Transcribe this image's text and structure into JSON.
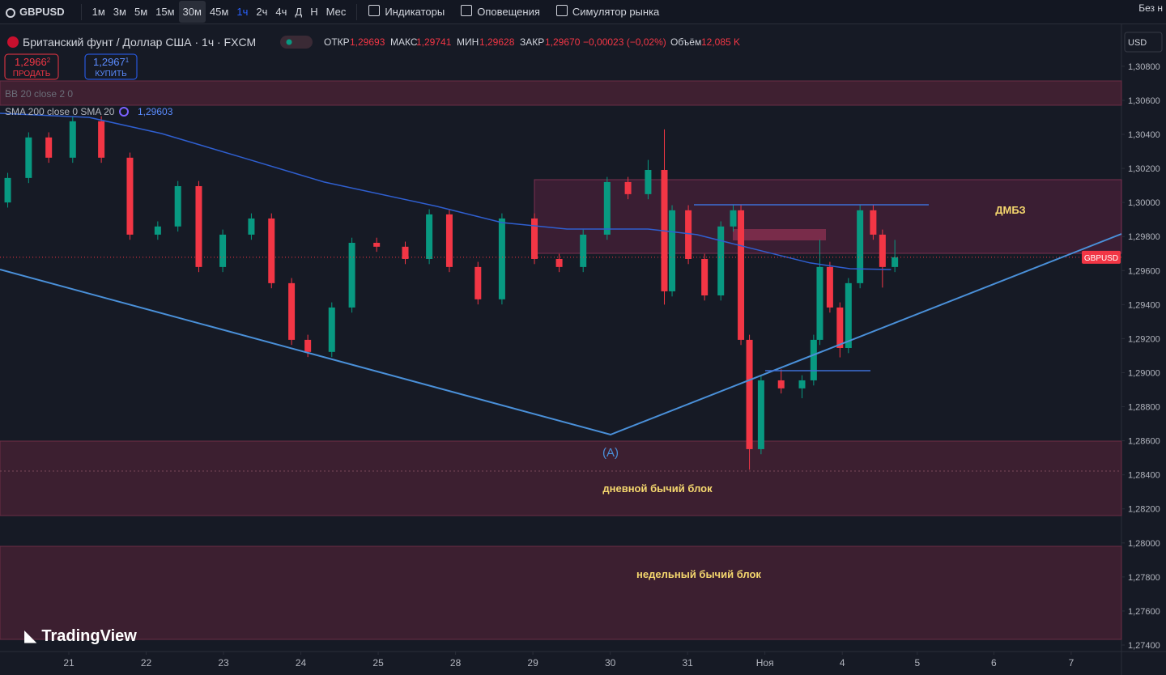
{
  "toolbar": {
    "symbol": "GBPUSD",
    "intervals": [
      "1м",
      "3м",
      "5м",
      "15м",
      "30м",
      "45м",
      "1ч",
      "2ч",
      "4ч",
      "Д",
      "Н",
      "Мес"
    ],
    "buttons": [
      "Индикаторы",
      "Оповещения",
      "Симулятор рынка"
    ],
    "right": "Без н"
  },
  "legend": {
    "instrument": "Британский фунт / Доллар США · 1ч · FXCM",
    "open_label": "ОТКР",
    "open": "1,29693",
    "high_label": "МАКС",
    "high": "1,29741",
    "low_label": "МИН",
    "low": "1,29628",
    "close_label": "ЗАКР",
    "close": "1,29670",
    "change": "−0,00023 (−0,02%)",
    "volume_label": "Объём",
    "volume": "12,085 K",
    "sell_price": "1,2966",
    "sell_sup": "2",
    "sell_label": "ПРОДАТЬ",
    "buy_price": "1,2967",
    "buy_sup": "1",
    "buy_label": "КУПИТЬ",
    "bb": "BB 20 close 2 0",
    "sma": "SMA 200 close 0 SMA 20",
    "sma_value": "1,29603",
    "currency": "USD"
  },
  "annotations": {
    "zone_top": "ДМБЗ",
    "point_a": "(A)",
    "daily_block": "дневной бычий блок",
    "weekly_block": "недельный бычий блок",
    "price_tag": "GBPUSD",
    "logo": "TradingView"
  },
  "chart_data": {
    "type": "candlestick",
    "x": [
      -0.79,
      -0.52,
      -0.26,
      0.05,
      0.42,
      0.79,
      1.15,
      1.41,
      1.68,
      1.99,
      2.36,
      2.62,
      2.88,
      3.09,
      3.4,
      3.66,
      3.98,
      4.35,
      4.66,
      4.92,
      5.29,
      5.6,
      6.02,
      6.34,
      6.65,
      6.96,
      7.23,
      7.49,
      7.7,
      7.8,
      8.01,
      8.22,
      8.43,
      8.59,
      8.69,
      8.8,
      8.95,
      9.21,
      9.48,
      9.63,
      9.71,
      9.84,
      9.97,
      10.08,
      10.23,
      10.4,
      10.52,
      10.68
    ],
    "open": [
      1.3,
      1.30144,
      1.30382,
      1.30263,
      1.30477,
      1.30263,
      1.29811,
      1.29859,
      1.30096,
      1.29621,
      1.29811,
      1.29906,
      1.29526,
      1.29193,
      1.29122,
      1.29383,
      1.29763,
      1.2974,
      1.29668,
      1.2993,
      1.29621,
      1.29431,
      1.29906,
      1.29668,
      1.29621,
      1.29811,
      1.3012,
      1.30049,
      1.30191,
      1.29478,
      1.29954,
      1.29668,
      1.29454,
      1.29859,
      1.29954,
      1.29193,
      1.28551,
      1.28955,
      1.28908,
      1.28955,
      1.29193,
      1.29621,
      1.29383,
      1.29145,
      1.29526,
      1.29954,
      1.29811,
      1.29621
    ],
    "high": [
      1.30174,
      1.30412,
      1.30412,
      1.30507,
      1.30507,
      1.30293,
      1.29889,
      1.30126,
      1.30126,
      1.29841,
      1.29936,
      1.29936,
      1.29556,
      1.29223,
      1.29413,
      1.29793,
      1.29793,
      1.2977,
      1.2996,
      1.2996,
      1.29651,
      1.29936,
      1.29936,
      1.29698,
      1.29841,
      1.3015,
      1.3015,
      1.3025,
      1.30429,
      1.29984,
      1.29984,
      1.29698,
      1.29889,
      1.29984,
      1.29984,
      1.29223,
      1.28985,
      1.2902,
      1.28985,
      1.29223,
      1.2978,
      1.29651,
      1.29413,
      1.29556,
      1.29984,
      1.29984,
      1.29841,
      1.2978
    ],
    "low": [
      1.2997,
      1.30114,
      1.30233,
      1.30233,
      1.30233,
      1.29781,
      1.29781,
      1.29829,
      1.29591,
      1.29591,
      1.29781,
      1.29496,
      1.29163,
      1.29092,
      1.29092,
      1.29353,
      1.2971,
      1.29638,
      1.29638,
      1.29591,
      1.29401,
      1.29401,
      1.29638,
      1.29591,
      1.29591,
      1.29781,
      1.30019,
      1.30019,
      1.294,
      1.29448,
      1.29638,
      1.29424,
      1.29424,
      1.29829,
      1.29163,
      1.2843,
      1.28521,
      1.28878,
      1.2885,
      1.28925,
      1.29163,
      1.29353,
      1.2909,
      1.29115,
      1.29496,
      1.29781,
      1.295,
      1.29591
    ],
    "close": [
      1.30144,
      1.30382,
      1.30263,
      1.30477,
      1.30263,
      1.29811,
      1.29859,
      1.30096,
      1.29621,
      1.29811,
      1.29906,
      1.29526,
      1.29193,
      1.29122,
      1.29383,
      1.29763,
      1.2974,
      1.29668,
      1.2993,
      1.29621,
      1.29431,
      1.29906,
      1.29668,
      1.29621,
      1.29811,
      1.3012,
      1.30049,
      1.30191,
      1.29478,
      1.29954,
      1.29668,
      1.29454,
      1.29859,
      1.29954,
      1.29193,
      1.28551,
      1.28955,
      1.28908,
      1.28955,
      1.29193,
      1.29621,
      1.29383,
      1.29145,
      1.29526,
      1.29954,
      1.29811,
      1.29621,
      1.29678
    ],
    "up_color": "#089981",
    "down_color": "#f23645",
    "series": [
      {
        "name": "SMA 200",
        "color": "#2f5fd0",
        "x": [
          -0.89,
          0.26,
          1.2,
          2.25,
          3.3,
          4.76,
          5.6,
          6.44,
          7.49,
          8.12,
          8.74,
          9.58,
          10.1,
          10.63
        ],
        "values": [
          1.30524,
          1.305,
          1.30405,
          1.30263,
          1.3012,
          1.29977,
          1.29882,
          1.29844,
          1.29844,
          1.29811,
          1.2974,
          1.29645,
          1.29611,
          1.29606
        ]
      }
    ],
    "xlim": [
      -0.89,
      13.61
    ],
    "xticks": [
      {
        "value": 0,
        "label": "21"
      },
      {
        "value": 1,
        "label": "22"
      },
      {
        "value": 2,
        "label": "23"
      },
      {
        "value": 3,
        "label": "24"
      },
      {
        "value": 4,
        "label": "25"
      },
      {
        "value": 5,
        "label": "28"
      },
      {
        "value": 6,
        "label": "29"
      },
      {
        "value": 7,
        "label": "30"
      },
      {
        "value": 8,
        "label": "31"
      },
      {
        "value": 9,
        "label": "Ноя"
      },
      {
        "value": 10,
        "label": "4"
      },
      {
        "value": 10.97,
        "label": "5"
      },
      {
        "value": 11.96,
        "label": "6"
      },
      {
        "value": 12.96,
        "label": "7"
      }
    ],
    "ylim": [
      1.27362,
      1.31023
    ],
    "yticks": [
      {
        "value": 1.308,
        "label": "1,30800"
      },
      {
        "value": 1.306,
        "label": "1,30600"
      },
      {
        "value": 1.304,
        "label": "1,30400"
      },
      {
        "value": 1.302,
        "label": "1,30200"
      },
      {
        "value": 1.3,
        "label": "1,30000"
      },
      {
        "value": 1.298,
        "label": "1,29800"
      },
      {
        "value": 1.296,
        "label": "1,29600"
      },
      {
        "value": 1.294,
        "label": "1,29400"
      },
      {
        "value": 1.292,
        "label": "1,29200"
      },
      {
        "value": 1.29,
        "label": "1,29000"
      },
      {
        "value": 1.288,
        "label": "1,28800"
      },
      {
        "value": 1.286,
        "label": "1,28600"
      },
      {
        "value": 1.284,
        "label": "1,28400"
      },
      {
        "value": 1.282,
        "label": "1,28200"
      },
      {
        "value": 1.28,
        "label": "1,28000"
      },
      {
        "value": 1.278,
        "label": "1,27800"
      },
      {
        "value": 1.276,
        "label": "1,27600"
      },
      {
        "value": 1.274,
        "label": "1,27400"
      }
    ]
  }
}
